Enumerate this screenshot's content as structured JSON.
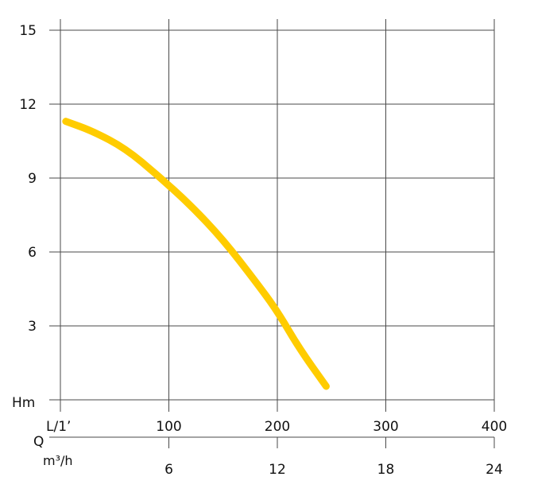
{
  "chart_data": {
    "type": "line",
    "title": "",
    "x_primary": {
      "label": "L/1’",
      "ticks": [
        100,
        200,
        300,
        400
      ],
      "range": [
        0,
        420
      ]
    },
    "x_secondary": {
      "label": "Q",
      "unit": "m³/h",
      "ticks": [
        6,
        12,
        18,
        24
      ]
    },
    "y": {
      "label": "Hm",
      "ticks": [
        3,
        6,
        9,
        12,
        15
      ],
      "range": [
        0,
        15
      ]
    },
    "grid": true,
    "series": [
      {
        "color": "#FFCC00",
        "x": [
          5,
          30,
          60,
          90,
          120,
          150,
          180,
          200,
          220,
          245
        ],
        "y": [
          11.3,
          10.9,
          10.2,
          9.1,
          7.9,
          6.5,
          4.8,
          3.6,
          2.1,
          0.55
        ]
      }
    ]
  }
}
